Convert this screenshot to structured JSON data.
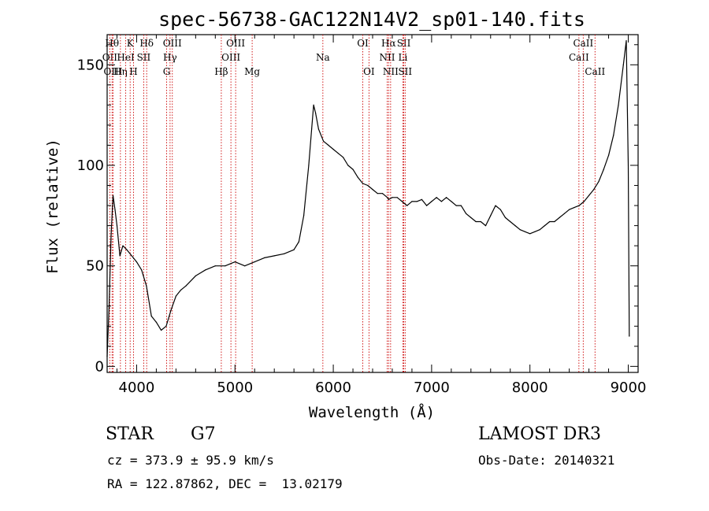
{
  "chart_data": {
    "type": "line",
    "title": "spec-56738-GAC122N14V2_sp01-140.fits",
    "xlabel": "Wavelength (Å)",
    "ylabel": "Flux (relative)",
    "xlim": [
      3700,
      9100
    ],
    "ylim": [
      -3,
      165
    ],
    "x_ticks": [
      4000,
      5000,
      6000,
      7000,
      8000,
      9000
    ],
    "y_ticks": [
      0,
      50,
      100,
      150
    ],
    "series": [
      {
        "x": [
          3700,
          3720,
          3740,
          3760,
          3780,
          3800,
          3830,
          3860,
          3900,
          3950,
          4000,
          4050,
          4100,
          4150,
          4200,
          4250,
          4300,
          4350,
          4400,
          4450,
          4500,
          4600,
          4700,
          4800,
          4900,
          5000,
          5100,
          5200,
          5300,
          5400,
          5500,
          5600,
          5650,
          5700,
          5750,
          5780,
          5800,
          5820,
          5850,
          5900,
          5950,
          6000,
          6050,
          6100,
          6150,
          6200,
          6250,
          6300,
          6350,
          6400,
          6450,
          6500,
          6550,
          6563,
          6600,
          6650,
          6700,
          6750,
          6800,
          6850,
          6900,
          6950,
          7000,
          7050,
          7100,
          7150,
          7200,
          7250,
          7300,
          7350,
          7400,
          7450,
          7500,
          7550,
          7600,
          7650,
          7700,
          7750,
          7800,
          7850,
          7900,
          7950,
          8000,
          8050,
          8100,
          8150,
          8200,
          8250,
          8300,
          8350,
          8400,
          8450,
          8500,
          8550,
          8600,
          8650,
          8700,
          8750,
          8800,
          8850,
          8900,
          8950,
          8980,
          9000,
          9010
        ],
        "y": [
          5,
          30,
          65,
          85,
          78,
          70,
          55,
          60,
          58,
          55,
          52,
          48,
          40,
          25,
          22,
          18,
          20,
          28,
          35,
          38,
          40,
          45,
          48,
          50,
          50,
          52,
          50,
          52,
          54,
          55,
          56,
          58,
          62,
          75,
          100,
          118,
          130,
          126,
          118,
          112,
          110,
          108,
          106,
          104,
          100,
          98,
          94,
          91,
          90,
          88,
          86,
          86,
          84,
          83,
          84,
          84,
          82,
          80,
          82,
          82,
          83,
          80,
          82,
          84,
          82,
          84,
          82,
          80,
          80,
          76,
          74,
          72,
          72,
          70,
          75,
          80,
          78,
          74,
          72,
          70,
          68,
          67,
          66,
          67,
          68,
          70,
          72,
          72,
          74,
          76,
          78,
          79,
          80,
          82,
          85,
          88,
          92,
          98,
          105,
          115,
          130,
          150,
          162,
          100,
          15
        ]
      }
    ],
    "line_markers": [
      {
        "label": "OII",
        "x": 3727,
        "row": 1
      },
      {
        "label": "Hθ",
        "x": 3750,
        "row": 0
      },
      {
        "label": "OIII",
        "x": 3760,
        "row": 2
      },
      {
        "label": "Hη",
        "x": 3835,
        "row": 2
      },
      {
        "label": "HeI",
        "x": 3889,
        "row": 1
      },
      {
        "label": "K",
        "x": 3934,
        "row": 0
      },
      {
        "label": "H",
        "x": 3968,
        "row": 2
      },
      {
        "label": "SII",
        "x": 4072,
        "row": 1
      },
      {
        "label": "Hδ",
        "x": 4102,
        "row": 0
      },
      {
        "label": "G",
        "x": 4305,
        "row": 2
      },
      {
        "label": "Hγ",
        "x": 4340,
        "row": 1
      },
      {
        "label": "OIII",
        "x": 4363,
        "row": 0
      },
      {
        "label": "Hβ",
        "x": 4861,
        "row": 2
      },
      {
        "label": "OIII",
        "x": 4959,
        "row": 1
      },
      {
        "label": "OIII",
        "x": 5007,
        "row": 0
      },
      {
        "label": "Mg",
        "x": 5175,
        "row": 2
      },
      {
        "label": "Na",
        "x": 5894,
        "row": 1
      },
      {
        "label": "OI",
        "x": 6300,
        "row": 0
      },
      {
        "label": "OI",
        "x": 6363,
        "row": 2
      },
      {
        "label": "NII",
        "x": 6548,
        "row": 1
      },
      {
        "label": "Hα",
        "x": 6563,
        "row": 0
      },
      {
        "label": "NII",
        "x": 6583,
        "row": 2
      },
      {
        "label": "SII",
        "x": 6717,
        "row": 0
      },
      {
        "label": "Li",
        "x": 6708,
        "row": 1
      },
      {
        "label": "SII",
        "x": 6731,
        "row": 2
      },
      {
        "label": "CaII",
        "x": 8498,
        "row": 1
      },
      {
        "label": "CaII",
        "x": 8542,
        "row": 0
      },
      {
        "label": "CaII",
        "x": 8662,
        "row": 2
      }
    ],
    "grid": false
  },
  "info": {
    "class_label": "STAR",
    "subclass": "G7",
    "survey": "LAMOST DR3",
    "cz": "cz = 373.9 ± 95.9 km/s",
    "obs_date": "Obs-Date: 20140321",
    "coords": "RA = 122.87862, DEC =  13.02179"
  },
  "colors": {
    "spectrum": "#000000",
    "line_markers": "#cc0000"
  }
}
